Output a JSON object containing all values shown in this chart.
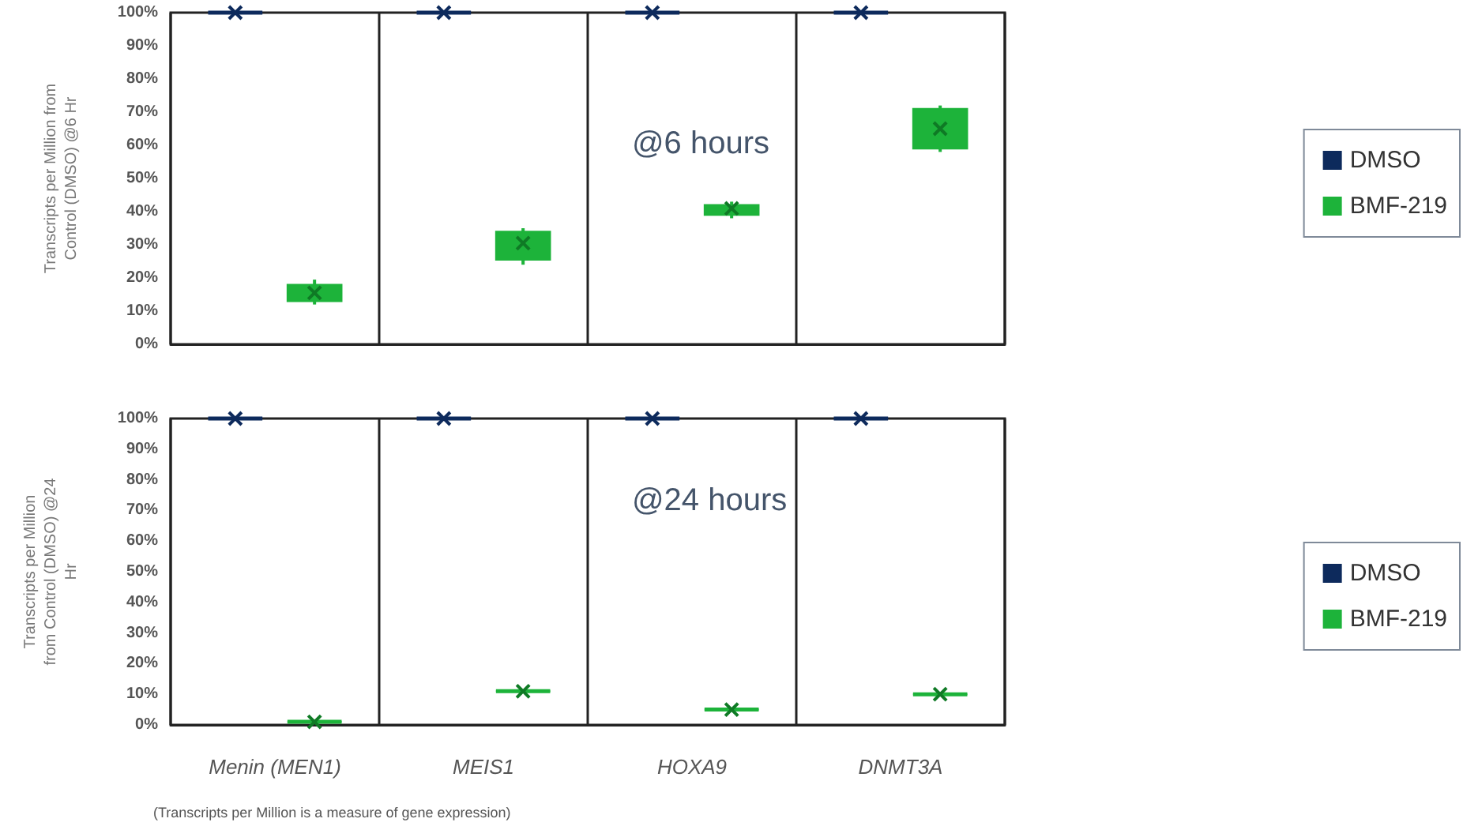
{
  "chart_data": [
    {
      "type": "box",
      "title": "@6 hours",
      "ylabel": "Transcripts per Million from Control (DMSO) @6 Hr",
      "categories": [
        null,
        null,
        null,
        null
      ],
      "ylim": [
        0,
        100
      ],
      "yticks": [
        {
          "value": 0,
          "label": "0%"
        },
        {
          "value": 10,
          "label": "10%"
        },
        {
          "value": 20,
          "label": "20%"
        },
        {
          "value": 30,
          "label": "30%"
        },
        {
          "value": 40,
          "label": "40%"
        },
        {
          "value": 50,
          "label": "50%"
        },
        {
          "value": 60,
          "label": "60%"
        },
        {
          "value": 70,
          "label": "70%"
        },
        {
          "value": 80,
          "label": "80%"
        },
        {
          "value": 90,
          "label": "90%"
        },
        {
          "value": 100,
          "label": "100%"
        }
      ],
      "tick_labels": "y",
      "grid": "x",
      "legend": "right",
      "marker": "cross",
      "series": [
        {
          "name": "DMSO",
          "color": "#0d2a5c",
          "boxes": [
            {
              "low": 100,
              "q1": 100,
              "median": 100,
              "q3": 100,
              "high": 100,
              "mean": 100
            },
            {
              "low": 100,
              "q1": 100,
              "median": 100,
              "q3": 100,
              "high": 100,
              "mean": 100
            },
            {
              "low": 100,
              "q1": 100,
              "median": 100,
              "q3": 100,
              "high": 100,
              "mean": 100
            },
            {
              "low": 100,
              "q1": 100,
              "median": 100,
              "q3": 100,
              "high": 100,
              "mean": 100
            }
          ]
        },
        {
          "name": "BMF-219",
          "color": "#1db33a",
          "boxes": [
            {
              "low": 12,
              "q1": 13,
              "median": 15.5,
              "q3": 18,
              "high": 19.5,
              "mean": 15.5
            },
            {
              "low": 24,
              "q1": 25.5,
              "median": 30.5,
              "q3": 34,
              "high": 35,
              "mean": 30.5
            },
            {
              "low": 38,
              "q1": 39,
              "median": 41,
              "q3": 42,
              "high": 43,
              "mean": 41
            },
            {
              "low": 58,
              "q1": 59,
              "median": 65,
              "q3": 71,
              "high": 72,
              "mean": 65
            }
          ]
        }
      ]
    },
    {
      "type": "box",
      "title": "@24 hours",
      "ylabel": "Transcripts per Million from Control (DMSO) @24 Hr",
      "categories": [
        "Menin (MEN1)",
        "MEIS1",
        "HOXA9",
        "DNMT3A"
      ],
      "ylim": [
        0,
        100
      ],
      "yticks": [
        {
          "value": 0,
          "label": "0%"
        },
        {
          "value": 10,
          "label": "10%"
        },
        {
          "value": 20,
          "label": "20%"
        },
        {
          "value": 30,
          "label": "30%"
        },
        {
          "value": 40,
          "label": "40%"
        },
        {
          "value": 50,
          "label": "50%"
        },
        {
          "value": 60,
          "label": "60%"
        },
        {
          "value": 70,
          "label": "70%"
        },
        {
          "value": 80,
          "label": "80%"
        },
        {
          "value": 90,
          "label": "90%"
        },
        {
          "value": 100,
          "label": "100%"
        }
      ],
      "grid": "x",
      "legend": "right",
      "marker": "cross",
      "annotations": [
        "(Transcripts per Million is a measure of gene expression)"
      ],
      "series": [
        {
          "name": "DMSO",
          "color": "#0d2a5c",
          "boxes": [
            {
              "low": 100,
              "q1": 100,
              "median": 100,
              "q3": 100,
              "high": 100,
              "mean": 100
            },
            {
              "low": 100,
              "q1": 100,
              "median": 100,
              "q3": 100,
              "high": 100,
              "mean": 100
            },
            {
              "low": 100,
              "q1": 100,
              "median": 100,
              "q3": 100,
              "high": 100,
              "mean": 100
            },
            {
              "low": 100,
              "q1": 100,
              "median": 100,
              "q3": 100,
              "high": 100,
              "mean": 100
            }
          ]
        },
        {
          "name": "BMF-219",
          "color": "#1db33a",
          "boxes": [
            {
              "low": 1,
              "q1": 1,
              "median": 1,
              "q3": 1,
              "high": 1,
              "mean": 1
            },
            {
              "low": 11,
              "q1": 11,
              "median": 11,
              "q3": 11,
              "high": 11,
              "mean": 11
            },
            {
              "low": 5,
              "q1": 5,
              "median": 5,
              "q3": 5,
              "high": 5,
              "mean": 5
            },
            {
              "low": 10,
              "q1": 10,
              "median": 10,
              "q3": 10,
              "high": 10,
              "mean": 10
            }
          ]
        }
      ]
    }
  ]
}
